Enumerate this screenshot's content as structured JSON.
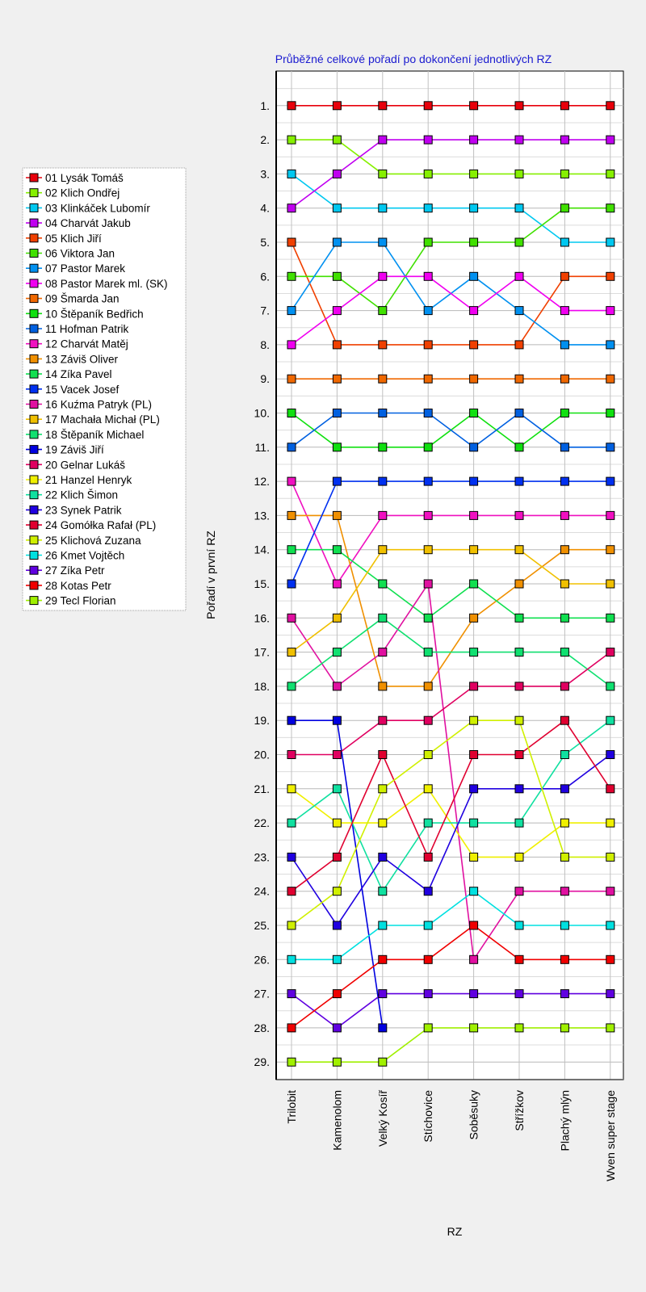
{
  "chart_data": {
    "type": "line",
    "title": "Průběžné celkové pořadí po dokončení jednotlivých RZ",
    "xlabel": "RZ",
    "ylabel": "Pořadí v první RZ",
    "categories": [
      "Trilobit",
      "Kamenolom",
      "Velký Kosíř",
      "Stíchovice",
      "Soběsuky",
      "Střížkov",
      "Plachý mlýn",
      "Wven super stage"
    ],
    "y_ticks": [
      "1.",
      "2.",
      "3.",
      "4.",
      "5.",
      "6.",
      "7.",
      "8.",
      "9.",
      "10.",
      "11.",
      "12.",
      "13.",
      "14.",
      "15.",
      "16.",
      "17.",
      "18.",
      "19.",
      "20.",
      "21.",
      "22.",
      "23.",
      "24.",
      "25.",
      "26.",
      "27.",
      "28.",
      "29."
    ],
    "ylim": [
      0,
      30
    ],
    "y_inverted": true,
    "grid": true,
    "legend_position": "left",
    "series": [
      {
        "name": "01 Lysák Tomáš",
        "color": "#e8000b",
        "values": [
          1,
          1,
          1,
          1,
          1,
          1,
          1,
          1
        ]
      },
      {
        "name": "02 Klich Ondřej",
        "color": "#86f000",
        "values": [
          2,
          2,
          3,
          3,
          3,
          3,
          3,
          3
        ]
      },
      {
        "name": "03 Klinkáček Lubomír",
        "color": "#00c8f0",
        "values": [
          3,
          4,
          4,
          4,
          4,
          4,
          5,
          5
        ]
      },
      {
        "name": "04 Charvát Jakub",
        "color": "#c000f0",
        "values": [
          4,
          3,
          2,
          2,
          2,
          2,
          2,
          2
        ]
      },
      {
        "name": "05 Klich Jiří",
        "color": "#f04000",
        "values": [
          5,
          8,
          8,
          8,
          8,
          8,
          6,
          6
        ]
      },
      {
        "name": "06 Viktora Jan",
        "color": "#40e000",
        "values": [
          6,
          6,
          7,
          5,
          5,
          5,
          4,
          4
        ]
      },
      {
        "name": "07 Pastor Marek",
        "color": "#0090f0",
        "values": [
          7,
          5,
          5,
          7,
          6,
          7,
          8,
          8
        ]
      },
      {
        "name": "08 Pastor Marek ml. (SK)",
        "color": "#f000f0",
        "values": [
          8,
          7,
          6,
          6,
          7,
          6,
          7,
          7
        ]
      },
      {
        "name": "09 Šmarda Jan",
        "color": "#f06800",
        "values": [
          9,
          9,
          9,
          9,
          9,
          9,
          9,
          9
        ]
      },
      {
        "name": "10 Štěpaník Bedřich",
        "color": "#10e010",
        "values": [
          10,
          11,
          11,
          11,
          10,
          11,
          10,
          10
        ]
      },
      {
        "name": "11 Hofman Patrik",
        "color": "#0060e0",
        "values": [
          11,
          10,
          10,
          10,
          11,
          10,
          11,
          11
        ]
      },
      {
        "name": "12 Charvát Matěj",
        "color": "#f010c0",
        "values": [
          12,
          15,
          13,
          13,
          13,
          13,
          13,
          13
        ]
      },
      {
        "name": "13 Záviš Oliver",
        "color": "#f09000",
        "values": [
          13,
          13,
          18,
          18,
          16,
          15,
          14,
          14
        ]
      },
      {
        "name": "14 Zíka Pavel",
        "color": "#10e050",
        "values": [
          14,
          14,
          15,
          16,
          15,
          16,
          16,
          16
        ]
      },
      {
        "name": "15 Vacek Josef",
        "color": "#0030f0",
        "values": [
          15,
          12,
          12,
          12,
          12,
          12,
          12,
          12
        ]
      },
      {
        "name": "16 Kuźma Patryk (PL)",
        "color": "#e010a0",
        "values": [
          16,
          18,
          17,
          15,
          26,
          24,
          24,
          24
        ]
      },
      {
        "name": "17 Machała Michał (PL)",
        "color": "#f0c000",
        "values": [
          17,
          16,
          14,
          14,
          14,
          14,
          15,
          15
        ]
      },
      {
        "name": "18 Štěpaník Michael",
        "color": "#10e070",
        "values": [
          18,
          17,
          16,
          17,
          17,
          17,
          17,
          18
        ]
      },
      {
        "name": "19 Záviš Jiří",
        "color": "#0000e0",
        "values": [
          19,
          19,
          28,
          null,
          null,
          null,
          null,
          null
        ]
      },
      {
        "name": "20 Gelnar Lukáš",
        "color": "#e00060",
        "values": [
          20,
          20,
          19,
          19,
          18,
          18,
          18,
          17
        ]
      },
      {
        "name": "21 Hanzel Henryk",
        "color": "#f0f000",
        "values": [
          21,
          22,
          22,
          21,
          23,
          23,
          22,
          22
        ]
      },
      {
        "name": "22 Klich Šimon",
        "color": "#10e0a0",
        "values": [
          22,
          21,
          24,
          22,
          22,
          22,
          20,
          19
        ]
      },
      {
        "name": "23 Synek Patrik",
        "color": "#2000e0",
        "values": [
          23,
          25,
          23,
          24,
          21,
          21,
          21,
          20
        ]
      },
      {
        "name": "24 Gomółka Rafał (PL)",
        "color": "#e00030",
        "values": [
          24,
          23,
          20,
          23,
          20,
          20,
          19,
          21
        ]
      },
      {
        "name": "25 Klichová Zuzana",
        "color": "#d0f000",
        "values": [
          25,
          24,
          21,
          20,
          19,
          19,
          23,
          23
        ]
      },
      {
        "name": "26 Kmet Vojtěch",
        "color": "#00e0e0",
        "values": [
          26,
          26,
          25,
          25,
          24,
          25,
          25,
          25
        ]
      },
      {
        "name": "27 Zíka Petr",
        "color": "#6000e0",
        "values": [
          27,
          28,
          27,
          27,
          27,
          27,
          27,
          27
        ]
      },
      {
        "name": "28 Kotas Petr",
        "color": "#f00000",
        "values": [
          28,
          27,
          26,
          26,
          25,
          26,
          26,
          26
        ]
      },
      {
        "name": "29 Tecl Florian",
        "color": "#a0f000",
        "values": [
          29,
          29,
          29,
          28,
          28,
          28,
          28,
          28
        ]
      }
    ]
  }
}
